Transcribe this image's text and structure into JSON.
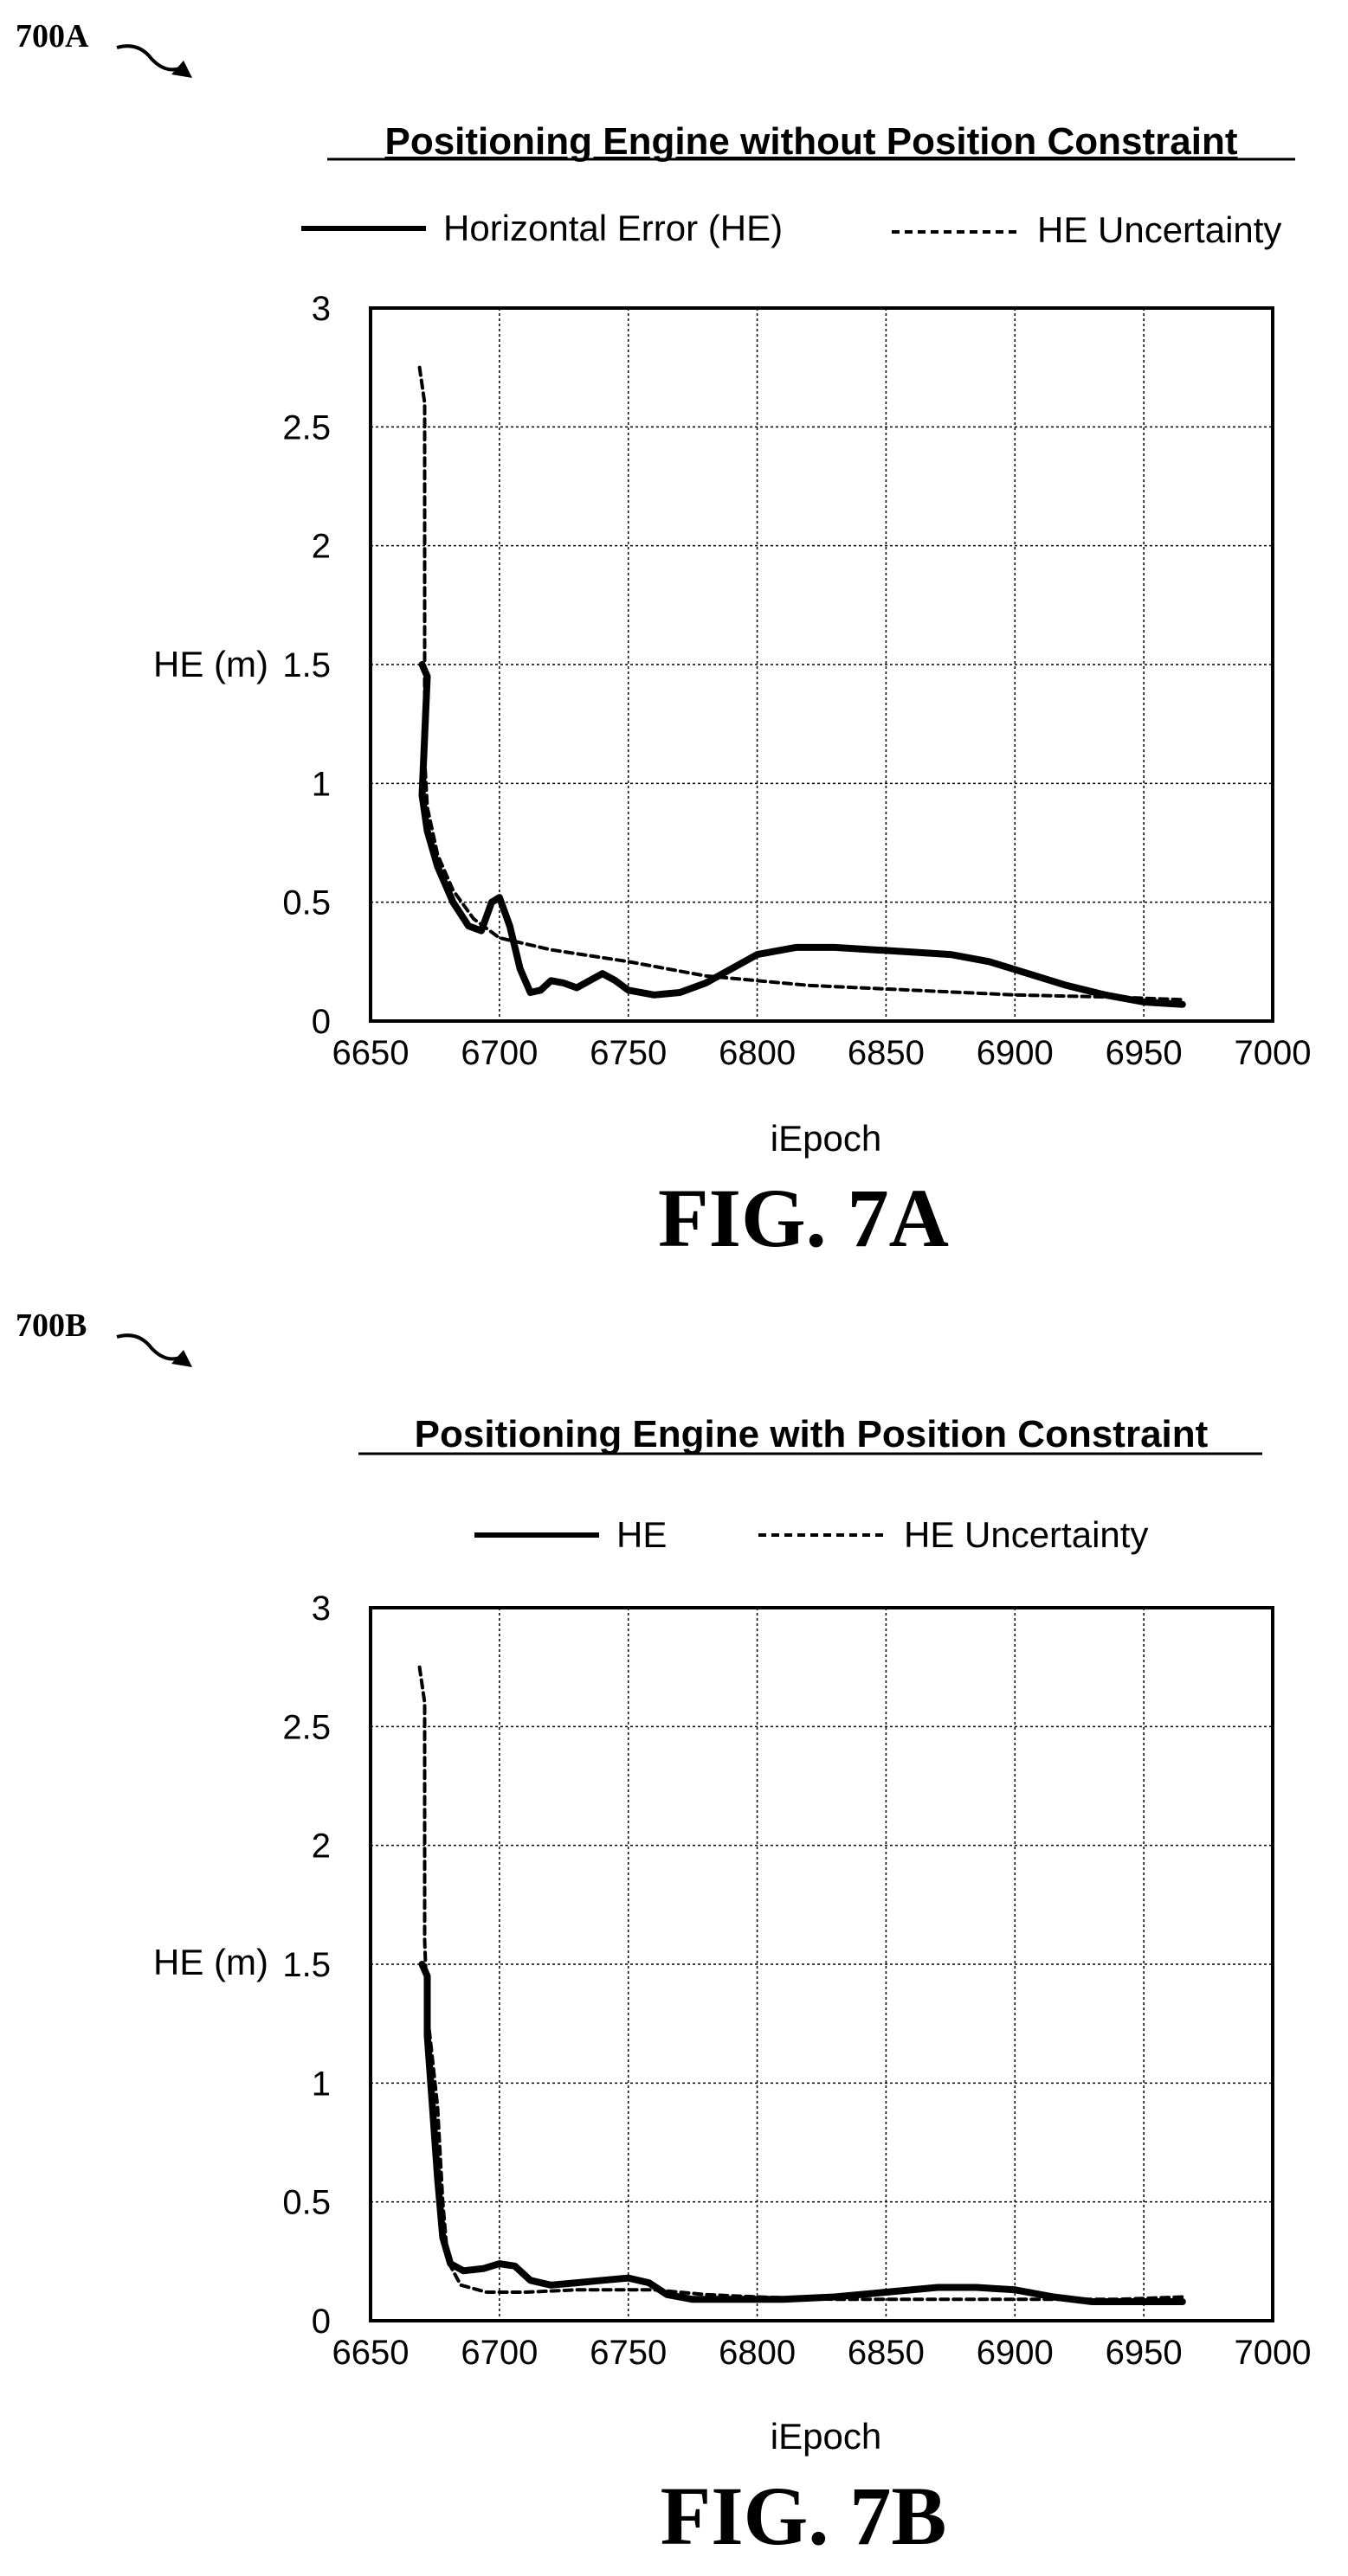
{
  "figures": [
    {
      "ref_label": "700A",
      "caption": "FIG. 7A"
    },
    {
      "ref_label": "700B",
      "caption": "FIG. 7B"
    }
  ],
  "chart_data": [
    {
      "type": "line",
      "title": "Positioning Engine without Position Constraint",
      "xlabel": "iEpoch",
      "ylabel": "HE (m)",
      "xlim": [
        6650,
        7000
      ],
      "ylim": [
        0,
        3
      ],
      "xticks": [
        "6650",
        "6700",
        "6750",
        "6800",
        "6850",
        "6900",
        "6950",
        "7000"
      ],
      "yticks": [
        "0",
        "0.5",
        "1",
        "1.5",
        "2",
        "2.5",
        "3"
      ],
      "grid": true,
      "legend": "top",
      "series": [
        {
          "name": "Horizontal Error (HE)",
          "style": "solid",
          "points": [
            [
              6670,
              1.5
            ],
            [
              6672,
              1.45
            ],
            [
              6671,
              1.2
            ],
            [
              6670,
              0.95
            ],
            [
              6672,
              0.8
            ],
            [
              6676,
              0.65
            ],
            [
              6682,
              0.5
            ],
            [
              6688,
              0.4
            ],
            [
              6693,
              0.38
            ],
            [
              6697,
              0.5
            ],
            [
              6700,
              0.52
            ],
            [
              6704,
              0.4
            ],
            [
              6708,
              0.22
            ],
            [
              6712,
              0.12
            ],
            [
              6716,
              0.13
            ],
            [
              6720,
              0.17
            ],
            [
              6725,
              0.16
            ],
            [
              6730,
              0.14
            ],
            [
              6735,
              0.17
            ],
            [
              6740,
              0.2
            ],
            [
              6745,
              0.17
            ],
            [
              6750,
              0.13
            ],
            [
              6760,
              0.11
            ],
            [
              6770,
              0.12
            ],
            [
              6780,
              0.16
            ],
            [
              6790,
              0.22
            ],
            [
              6800,
              0.28
            ],
            [
              6815,
              0.31
            ],
            [
              6830,
              0.31
            ],
            [
              6845,
              0.3
            ],
            [
              6860,
              0.29
            ],
            [
              6875,
              0.28
            ],
            [
              6890,
              0.25
            ],
            [
              6905,
              0.2
            ],
            [
              6920,
              0.15
            ],
            [
              6935,
              0.11
            ],
            [
              6950,
              0.08
            ],
            [
              6965,
              0.07
            ]
          ]
        },
        {
          "name": "HE Uncertainty",
          "style": "dashed",
          "points": [
            [
              6669,
              2.75
            ],
            [
              6671,
              2.6
            ],
            [
              6671,
              2.0
            ],
            [
              6671,
              1.6
            ],
            [
              6671,
              1.4
            ],
            [
              6671,
              1.1
            ],
            [
              6672,
              0.9
            ],
            [
              6676,
              0.7
            ],
            [
              6682,
              0.55
            ],
            [
              6690,
              0.43
            ],
            [
              6700,
              0.35
            ],
            [
              6720,
              0.3
            ],
            [
              6750,
              0.25
            ],
            [
              6780,
              0.19
            ],
            [
              6820,
              0.15
            ],
            [
              6860,
              0.13
            ],
            [
              6900,
              0.11
            ],
            [
              6940,
              0.1
            ],
            [
              6965,
              0.09
            ]
          ]
        }
      ]
    },
    {
      "type": "line",
      "title": "Positioning Engine with Position Constraint",
      "xlabel": "iEpoch",
      "ylabel": "HE (m)",
      "xlim": [
        6650,
        7000
      ],
      "ylim": [
        0,
        3
      ],
      "xticks": [
        "6650",
        "6700",
        "6750",
        "6800",
        "6850",
        "6900",
        "6950",
        "7000"
      ],
      "yticks": [
        "0",
        "0.5",
        "1",
        "1.5",
        "2",
        "2.5",
        "3"
      ],
      "grid": true,
      "legend": "top",
      "series": [
        {
          "name": "HE",
          "style": "solid",
          "points": [
            [
              6670,
              1.5
            ],
            [
              6672,
              1.45
            ],
            [
              6672,
              1.2
            ],
            [
              6674,
              0.9
            ],
            [
              6676,
              0.6
            ],
            [
              6678,
              0.35
            ],
            [
              6681,
              0.24
            ],
            [
              6686,
              0.21
            ],
            [
              6694,
              0.22
            ],
            [
              6700,
              0.24
            ],
            [
              6706,
              0.23
            ],
            [
              6712,
              0.17
            ],
            [
              6720,
              0.15
            ],
            [
              6730,
              0.16
            ],
            [
              6740,
              0.17
            ],
            [
              6750,
              0.18
            ],
            [
              6758,
              0.16
            ],
            [
              6765,
              0.11
            ],
            [
              6775,
              0.09
            ],
            [
              6790,
              0.09
            ],
            [
              6810,
              0.09
            ],
            [
              6830,
              0.1
            ],
            [
              6850,
              0.12
            ],
            [
              6870,
              0.14
            ],
            [
              6885,
              0.14
            ],
            [
              6900,
              0.13
            ],
            [
              6915,
              0.1
            ],
            [
              6930,
              0.08
            ],
            [
              6945,
              0.08
            ],
            [
              6965,
              0.08
            ]
          ]
        },
        {
          "name": "HE Uncertainty",
          "style": "dashed",
          "points": [
            [
              6669,
              2.75
            ],
            [
              6671,
              2.6
            ],
            [
              6671,
              2.0
            ],
            [
              6671,
              1.6
            ],
            [
              6672,
              1.3
            ],
            [
              6674,
              1.1
            ],
            [
              6676,
              0.9
            ],
            [
              6678,
              0.5
            ],
            [
              6680,
              0.25
            ],
            [
              6685,
              0.15
            ],
            [
              6695,
              0.12
            ],
            [
              6710,
              0.12
            ],
            [
              6730,
              0.13
            ],
            [
              6760,
              0.13
            ],
            [
              6780,
              0.11
            ],
            [
              6800,
              0.1
            ],
            [
              6830,
              0.09
            ],
            [
              6870,
              0.09
            ],
            [
              6910,
              0.09
            ],
            [
              6940,
              0.09
            ],
            [
              6965,
              0.1
            ]
          ]
        }
      ]
    }
  ]
}
